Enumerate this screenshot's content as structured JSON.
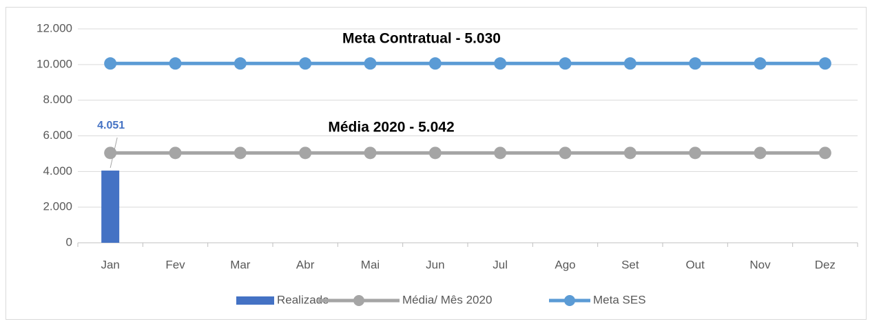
{
  "chart_data": {
    "type": "combo",
    "annotations": [
      "Meta  Contratual - 5.030",
      "Média   2020 - 5.042"
    ],
    "categories": [
      "Jan",
      "Fev",
      "Mar",
      "Abr",
      "Mai",
      "Jun",
      "Jul",
      "Ago",
      "Set",
      "Out",
      "Nov",
      "Dez"
    ],
    "series": [
      {
        "name": "Realizado",
        "type": "bar",
        "color": "#4472c4",
        "values": [
          4051,
          null,
          null,
          null,
          null,
          null,
          null,
          null,
          null,
          null,
          null,
          null
        ],
        "value_labels": [
          "4.051",
          null,
          null,
          null,
          null,
          null,
          null,
          null,
          null,
          null,
          null,
          null
        ]
      },
      {
        "name": "Média/ Mês 2020",
        "type": "line",
        "color": "#a5a5a5",
        "values": [
          5042,
          5042,
          5042,
          5042,
          5042,
          5042,
          5042,
          5042,
          5042,
          5042,
          5042,
          5042
        ]
      },
      {
        "name": "Meta SES",
        "type": "line",
        "color": "#5b9bd5",
        "values": [
          10060,
          10060,
          10060,
          10060,
          10060,
          10060,
          10060,
          10060,
          10060,
          10060,
          10060,
          10060
        ]
      }
    ],
    "ylim": [
      0,
      12000
    ],
    "yticks": [
      0,
      {
        "value": 2000,
        "label": "2.000"
      },
      {
        "value": 4000,
        "label": "4.000"
      },
      {
        "value": 6000,
        "label": "6.000"
      },
      {
        "value": 8000,
        "label": "8.000"
      },
      {
        "value": 10000,
        "label": "10.000"
      },
      {
        "value": 12000,
        "label": "12.000"
      }
    ],
    "grid": true,
    "legend": "bottom"
  }
}
